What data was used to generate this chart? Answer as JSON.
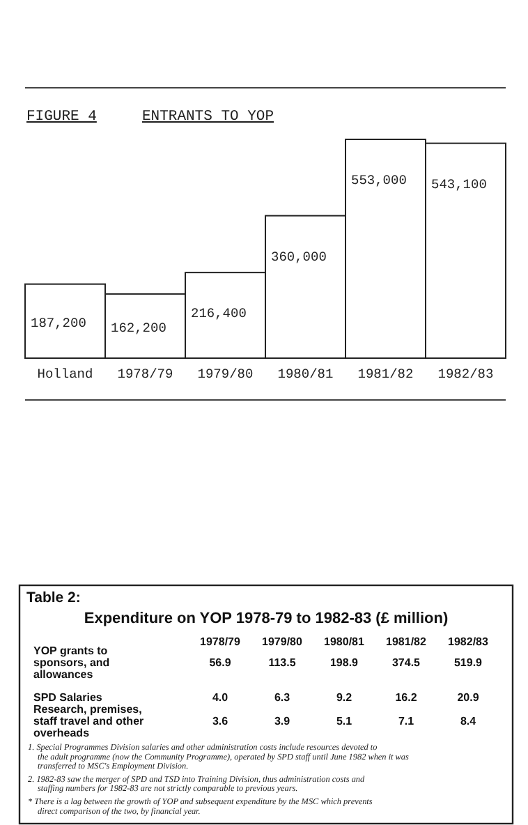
{
  "chart_data": [
    {
      "type": "bar",
      "title": "FIGURE 4",
      "subtitle": "ENTRANTS TO YOP",
      "categories": [
        "Holland",
        "1978/79",
        "1979/80",
        "1980/81",
        "1981/82",
        "1982/83"
      ],
      "values": [
        187200,
        162200,
        216400,
        360000,
        553000,
        543100
      ],
      "value_labels": [
        "187,200",
        "162,200",
        "216,400",
        "360,000",
        "553,000",
        "543,100"
      ],
      "color": "#ffffff"
    },
    {
      "type": "heatmap",
      "title": "Table 2:",
      "subtitle": "Expenditure on YOP 1978-79 to 1982-83 (£ million)",
      "categories": [
        "1978/79",
        "1979/80",
        "1980/81",
        "1981/82",
        "1982/83"
      ],
      "y_categories": [
        "YOP grants to sponsors, and allowances",
        "SPD Salaries",
        "Research, premises, staff travel and other overheads"
      ],
      "cells": [
        [
          56.9,
          113.5,
          198.9,
          374.5,
          519.9
        ],
        [
          4.0,
          6.3,
          9.2,
          16.2,
          20.9
        ],
        [
          3.6,
          3.9,
          5.1,
          7.1,
          8.4
        ]
      ],
      "cell_labels": [
        [
          "56.9",
          "113.5",
          "198.9",
          "374.5",
          "519.9"
        ],
        [
          "4.0",
          "6.3",
          "9.2",
          "16.2",
          "20.9"
        ],
        [
          "3.6",
          "3.9",
          "5.1",
          "7.1",
          "8.4"
        ]
      ],
      "annotations": [
        "1. Special Programmes Division salaries and other administration costs include resources devoted to the adult programme (now the Community Programme), operated by SPD staff until June 1982 when it was transferred to MSC's Employment Division.",
        "2. 1982-83 saw the merger of SPD and TSD into Training Division, thus administration costs and staffing numbers for 1982-83 are not strictly comparable to previous years.",
        "* There is a lag between the growth of YOP and subsequent expenditure by the MSC which prevents direct comparison of the two, by financial year."
      ]
    }
  ]
}
